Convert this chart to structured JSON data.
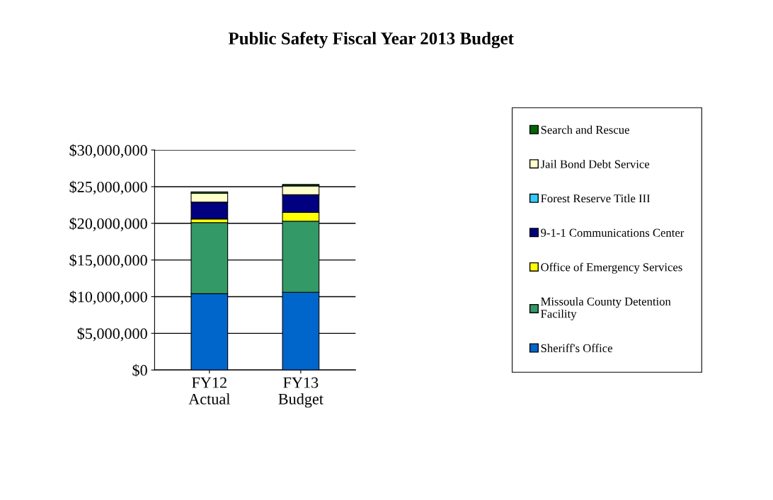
{
  "chart_data": {
    "type": "bar",
    "title": "Public Safety Fiscal Year 2013 Budget",
    "stacked": true,
    "categories": [
      "FY12\nActual",
      "FY13\nBudget"
    ],
    "series": [
      {
        "name": "Sheriff's Office",
        "color": "#0066cc",
        "values": [
          10400000,
          10600000
        ]
      },
      {
        "name": "Missoula County Detention\nFacility",
        "color": "#339966",
        "values": [
          9700000,
          9700000
        ]
      },
      {
        "name": "Office of Emergency Services",
        "color": "#ffff00",
        "values": [
          500000,
          1200000
        ]
      },
      {
        "name": "9-1-1 Communications Center",
        "color": "#000080",
        "values": [
          2300000,
          2400000
        ]
      },
      {
        "name": "Forest Reserve Title III",
        "color": "#33ccff",
        "values": [
          0,
          0
        ]
      },
      {
        "name": "Jail Bond Debt Service",
        "color": "#ffffcc",
        "values": [
          1200000,
          1200000
        ]
      },
      {
        "name": "Search and Rescue",
        "color": "#006600",
        "values": [
          200000,
          200000
        ]
      }
    ],
    "ylim": [
      0,
      30000000
    ],
    "yticks": [
      {
        "value": 0,
        "label": "$0"
      },
      {
        "value": 5000000,
        "label": "$5,000,000"
      },
      {
        "value": 10000000,
        "label": "$10,000,000"
      },
      {
        "value": 15000000,
        "label": "$15,000,000"
      },
      {
        "value": 20000000,
        "label": "$20,000,000"
      },
      {
        "value": 25000000,
        "label": "$25,000,000"
      },
      {
        "value": 30000000,
        "label": "$30,000,000"
      }
    ],
    "grid": "y",
    "legend": "right"
  }
}
